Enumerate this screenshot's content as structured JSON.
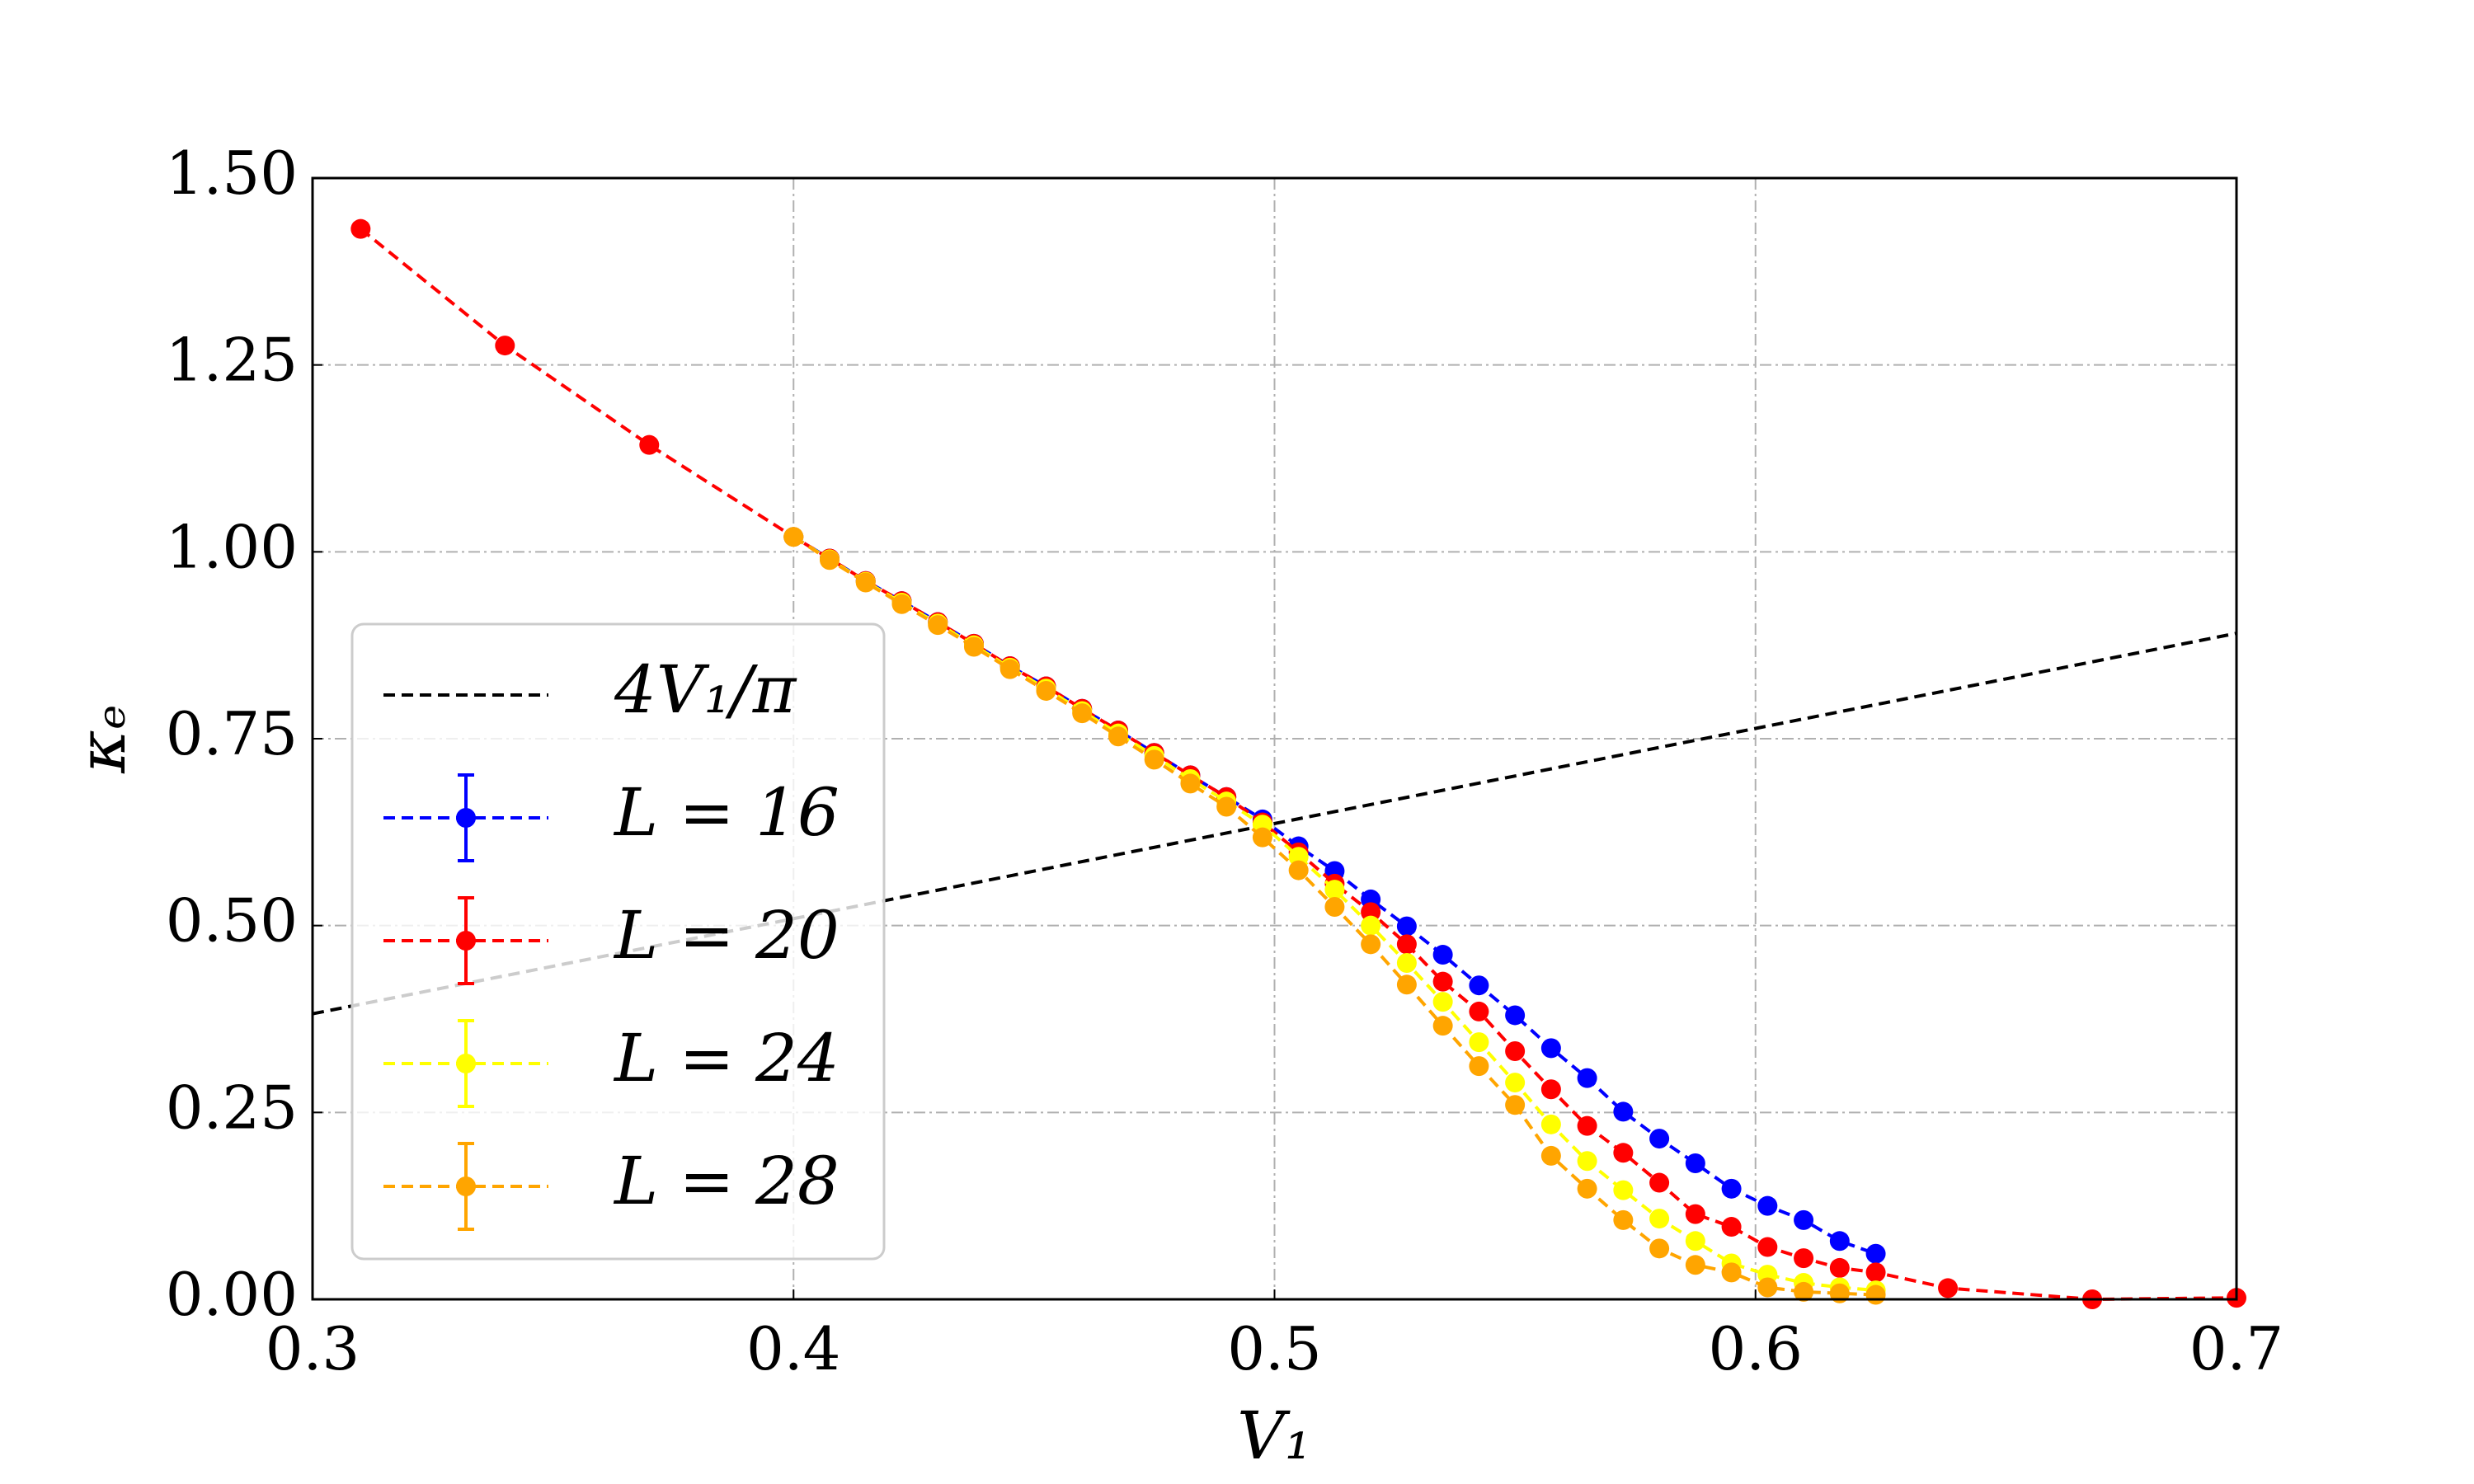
{
  "chart_data": {
    "type": "line",
    "xlabel": "V₁",
    "ylabel": "κₑ",
    "xlim": [
      0.3,
      0.7
    ],
    "xticks": [
      0.3,
      0.4,
      0.5,
      0.6,
      0.7
    ],
    "ylim": [
      0,
      1.5
    ],
    "yticks": [
      {
        "value": 0,
        "label": "0.00"
      },
      {
        "value": 0.25,
        "label": "0.25"
      },
      {
        "value": 0.5,
        "label": "0.50"
      },
      {
        "value": 0.75,
        "label": "0.75"
      },
      {
        "value": 1,
        "label": "1.00"
      },
      {
        "value": 1.25,
        "label": "1.25"
      },
      {
        "value": 1.5,
        "label": "1.50"
      }
    ],
    "grid": true,
    "legend": "lower left",
    "series": [
      {
        "name": "4V₁/π",
        "color": "#000000",
        "markers": false,
        "x": [
          0.3,
          0.7
        ],
        "values": [
          0.382,
          0.891
        ]
      },
      {
        "name": "L = 16",
        "color": "#0000ff",
        "markers": true,
        "x": [
          0.4,
          0.4075,
          0.415,
          0.4225,
          0.43,
          0.4375,
          0.445,
          0.4525,
          0.46,
          0.4675,
          0.475,
          0.4825,
          0.49,
          0.4975,
          0.505,
          0.5125,
          0.52,
          0.5275,
          0.535,
          0.5425,
          0.55,
          0.5575,
          0.565,
          0.5725,
          0.58,
          0.5875,
          0.595,
          0.6025,
          0.61,
          0.6175,
          0.625
        ],
        "values": [
          1.02,
          0.991,
          0.961,
          0.934,
          0.906,
          0.877,
          0.847,
          0.82,
          0.79,
          0.761,
          0.731,
          0.701,
          0.672,
          0.642,
          0.606,
          0.573,
          0.535,
          0.499,
          0.461,
          0.42,
          0.38,
          0.336,
          0.296,
          0.251,
          0.215,
          0.182,
          0.148,
          0.125,
          0.106,
          0.078,
          0.061
        ]
      },
      {
        "name": "L = 20",
        "color": "#ff0000",
        "markers": true,
        "x": [
          0.31,
          0.34,
          0.37,
          0.4,
          0.4075,
          0.415,
          0.4225,
          0.43,
          0.4375,
          0.445,
          0.4525,
          0.46,
          0.4675,
          0.475,
          0.4825,
          0.49,
          0.4975,
          0.505,
          0.5125,
          0.52,
          0.5275,
          0.535,
          0.5425,
          0.55,
          0.5575,
          0.565,
          0.5725,
          0.58,
          0.5875,
          0.595,
          0.6025,
          0.61,
          0.6175,
          0.625,
          0.64,
          0.67,
          0.7
        ],
        "values": [
          1.432,
          1.276,
          1.143,
          1.02,
          0.991,
          0.961,
          0.934,
          0.906,
          0.877,
          0.847,
          0.82,
          0.79,
          0.761,
          0.731,
          0.701,
          0.672,
          0.638,
          0.598,
          0.556,
          0.518,
          0.475,
          0.425,
          0.385,
          0.332,
          0.281,
          0.232,
          0.196,
          0.156,
          0.114,
          0.097,
          0.07,
          0.055,
          0.042,
          0.036,
          0.015,
          0.0,
          0.002
        ]
      },
      {
        "name": "L = 24",
        "color": "#ffff00",
        "markers": true,
        "x": [
          0.4,
          0.4075,
          0.415,
          0.4225,
          0.43,
          0.4375,
          0.445,
          0.4525,
          0.46,
          0.4675,
          0.475,
          0.4825,
          0.49,
          0.4975,
          0.505,
          0.5125,
          0.52,
          0.5275,
          0.535,
          0.5425,
          0.55,
          0.5575,
          0.565,
          0.5725,
          0.58,
          0.5875,
          0.595,
          0.6025,
          0.61,
          0.6175,
          0.625
        ],
        "values": [
          1.02,
          0.99,
          0.96,
          0.932,
          0.904,
          0.875,
          0.845,
          0.817,
          0.787,
          0.757,
          0.727,
          0.696,
          0.666,
          0.635,
          0.592,
          0.548,
          0.5,
          0.45,
          0.398,
          0.344,
          0.29,
          0.234,
          0.185,
          0.146,
          0.108,
          0.078,
          0.048,
          0.033,
          0.022,
          0.016,
          0.012
        ]
      },
      {
        "name": "L = 28",
        "color": "#ffa500",
        "markers": true,
        "x": [
          0.4,
          0.4075,
          0.415,
          0.4225,
          0.43,
          0.4375,
          0.445,
          0.4525,
          0.46,
          0.4675,
          0.475,
          0.4825,
          0.49,
          0.4975,
          0.505,
          0.5125,
          0.52,
          0.5275,
          0.535,
          0.5425,
          0.55,
          0.5575,
          0.565,
          0.5725,
          0.58,
          0.5875,
          0.595,
          0.6025,
          0.61,
          0.6175,
          0.625
        ],
        "values": [
          1.02,
          0.989,
          0.959,
          0.93,
          0.902,
          0.873,
          0.843,
          0.814,
          0.784,
          0.753,
          0.722,
          0.69,
          0.659,
          0.618,
          0.574,
          0.525,
          0.475,
          0.421,
          0.366,
          0.312,
          0.26,
          0.192,
          0.148,
          0.106,
          0.068,
          0.046,
          0.036,
          0.016,
          0.01,
          0.008,
          0.006
        ]
      }
    ]
  }
}
